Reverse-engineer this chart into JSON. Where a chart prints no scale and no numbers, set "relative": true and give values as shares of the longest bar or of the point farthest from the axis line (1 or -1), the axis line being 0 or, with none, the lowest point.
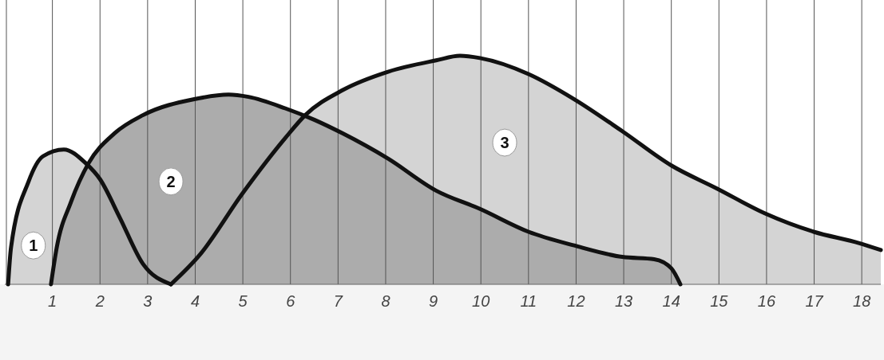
{
  "chart_data": {
    "type": "area",
    "relative": true,
    "xlim": [
      0,
      18.4
    ],
    "xticks": [
      1,
      2,
      3,
      4,
      5,
      6,
      7,
      8,
      9,
      10,
      11,
      12,
      13,
      14,
      15,
      16,
      17,
      18
    ],
    "grid": "x",
    "tick_labels": "x",
    "series": [
      {
        "color": "#d4d4d4",
        "x": [
          0.07,
          0.13,
          0.5,
          0.8,
          1.24,
          1.7,
          2.0,
          2.42,
          2.9,
          3.49
        ],
        "values": [
          0,
          0.16,
          0.45,
          0.56,
          0.59,
          0.53,
          0.46,
          0.29,
          0.09,
          0
        ]
      },
      {
        "color": "#acacac",
        "x": [
          0.97,
          1.09,
          1.39,
          1.76,
          2.3,
          2.9,
          3.98,
          4.7,
          5.12,
          5.89,
          6.5,
          7.1,
          8.05,
          9.06,
          9.98,
          11.0,
          11.96,
          12.97,
          13.64,
          14.0,
          14.19
        ],
        "values": [
          0,
          0.16,
          0.36,
          0.53,
          0.66,
          0.74,
          0.81,
          0.83,
          0.82,
          0.77,
          0.72,
          0.66,
          0.55,
          0.41,
          0.33,
          0.23,
          0.17,
          0.12,
          0.11,
          0.07,
          0
        ]
      },
      {
        "color": "#d4d4d4",
        "x": [
          3.49,
          4.1,
          5.0,
          5.89,
          6.31,
          7.1,
          8.05,
          9.06,
          9.56,
          9.98,
          11.0,
          11.96,
          12.97,
          14.0,
          14.95,
          15.97,
          16.99,
          17.95,
          18.4
        ],
        "values": [
          0,
          0.13,
          0.4,
          0.64,
          0.74,
          0.85,
          0.93,
          0.98,
          1,
          0.99,
          0.92,
          0.81,
          0.67,
          0.52,
          0.42,
          0.31,
          0.23,
          0.18,
          0.15
        ]
      }
    ],
    "annotations": [
      {
        "text": "1",
        "x": 0.6,
        "y": 0.17
      },
      {
        "text": "2",
        "x": 3.49,
        "y": 0.45
      },
      {
        "text": "3",
        "x": 10.5,
        "y": 0.62
      }
    ]
  }
}
